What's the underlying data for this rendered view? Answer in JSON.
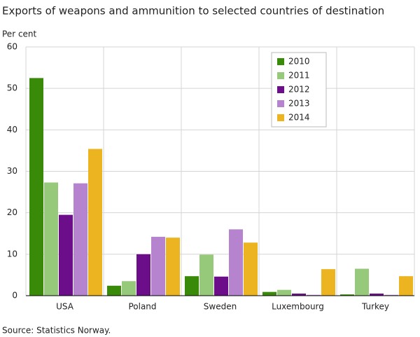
{
  "chart_data": {
    "type": "bar",
    "title": "Exports of weapons and ammunition to selected countries of destination",
    "y_label": "Per cent",
    "source": "Source: Statistics Norway.",
    "categories": [
      "USA",
      "Poland",
      "Sweden",
      "Luxembourg",
      "Turkey"
    ],
    "series": [
      {
        "name": "2010",
        "color": "#3a8a0a",
        "values": [
          52.5,
          2.4,
          4.7,
          0.9,
          0.3
        ]
      },
      {
        "name": "2011",
        "color": "#97c97a",
        "values": [
          27.3,
          3.5,
          9.9,
          1.4,
          6.5
        ]
      },
      {
        "name": "2012",
        "color": "#6c0e8a",
        "values": [
          19.5,
          10.0,
          4.6,
          0.5,
          0.5
        ]
      },
      {
        "name": "2013",
        "color": "#b684cf",
        "values": [
          27.1,
          14.2,
          16.0,
          0.2,
          0.2
        ]
      },
      {
        "name": "2014",
        "color": "#ebb420",
        "values": [
          35.4,
          14.0,
          12.8,
          6.4,
          4.7
        ]
      }
    ],
    "ylim": [
      0,
      60
    ],
    "yticks": [
      0,
      10,
      20,
      30,
      40,
      50,
      60
    ],
    "grid": true,
    "legend": "upper right"
  }
}
